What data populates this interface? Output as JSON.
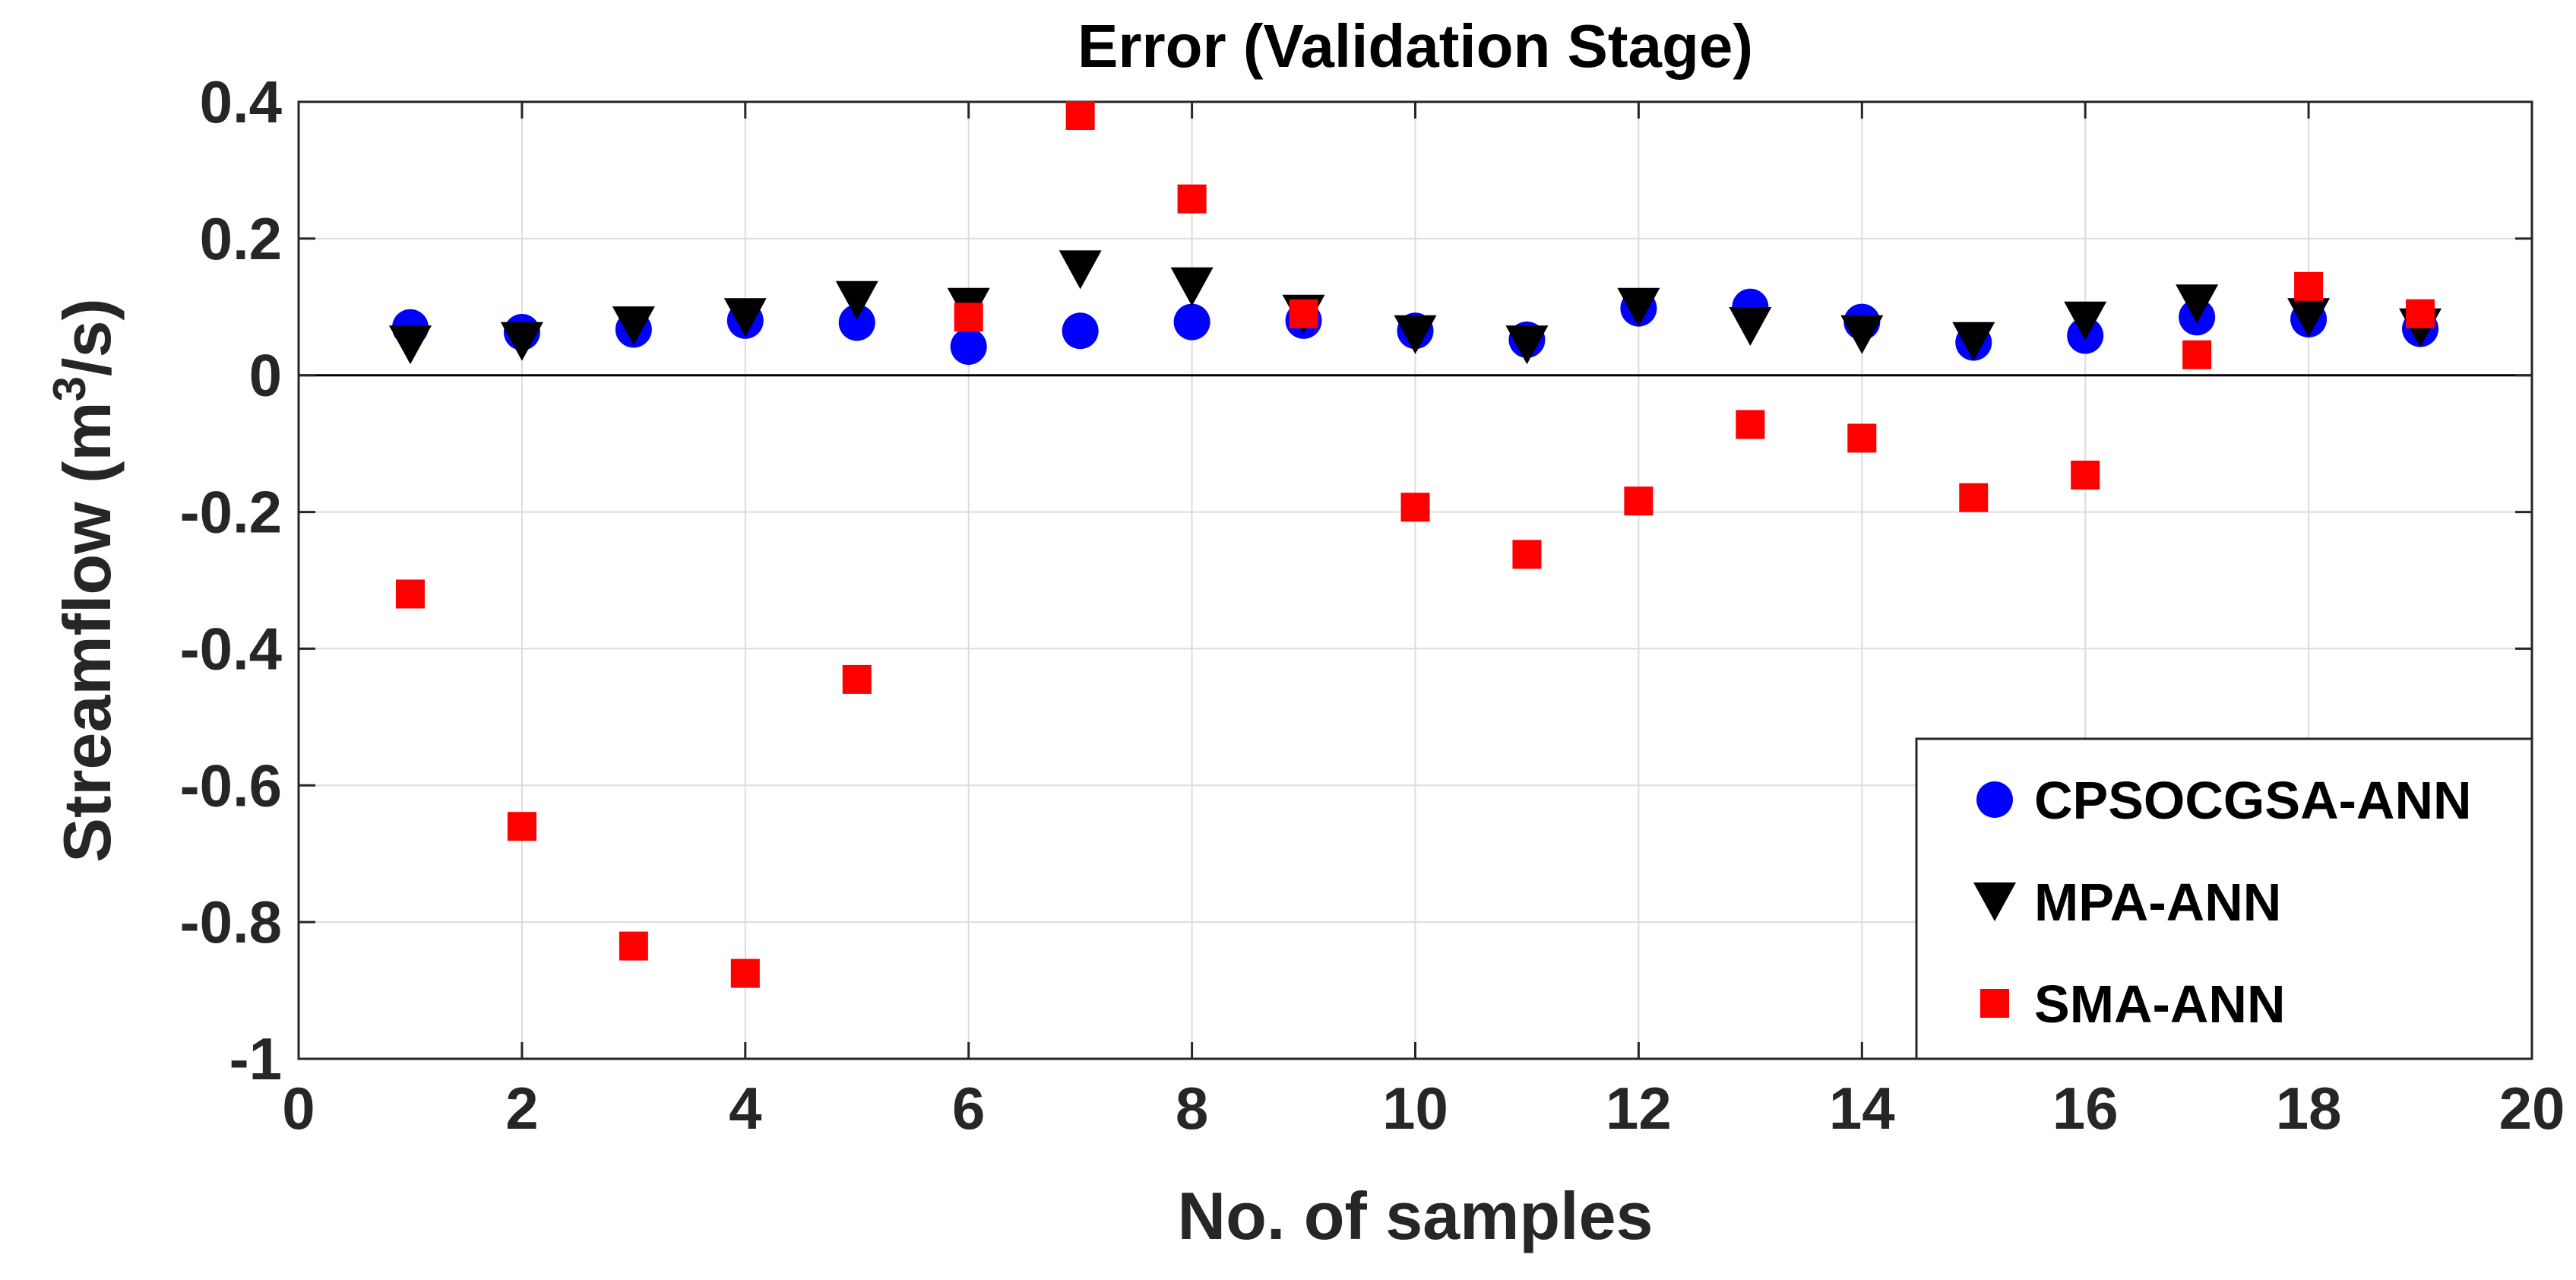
{
  "chart_data": {
    "type": "scatter",
    "title": "Error (Validation Stage)",
    "xlabel": "No. of samples",
    "ylabel_main": "Streamflow (m",
    "ylabel_sup": "3",
    "ylabel_tail": "/s)",
    "xlim": [
      0,
      20
    ],
    "ylim": [
      -1,
      0.4
    ],
    "xticks": [
      0,
      2,
      4,
      6,
      8,
      10,
      12,
      14,
      16,
      18,
      20
    ],
    "xtick_labels": [
      "0",
      "2",
      "4",
      "6",
      "8",
      "10",
      "12",
      "14",
      "16",
      "18",
      "20"
    ],
    "yticks": [
      0.4,
      0.2,
      0,
      -0.2,
      -0.4,
      -0.6,
      -0.8,
      -1
    ],
    "ytick_labels": [
      "0.4",
      "0.2",
      "0",
      "-0.2",
      "-0.4",
      "-0.6",
      "-0.8",
      "-1"
    ],
    "grid": true,
    "legend_position": "bottom-right",
    "zero_line": true,
    "x": [
      1,
      2,
      3,
      4,
      5,
      6,
      7,
      8,
      9,
      10,
      11,
      12,
      13,
      14,
      15,
      16,
      17,
      18,
      19
    ],
    "series": [
      {
        "name": "CPSOCGSA-ANN",
        "marker": "circle",
        "color": "#0000FF",
        "values": [
          0.07,
          0.063,
          0.067,
          0.08,
          0.077,
          0.042,
          0.065,
          0.078,
          0.08,
          0.065,
          0.052,
          0.098,
          0.1,
          0.078,
          0.048,
          0.058,
          0.085,
          0.082,
          0.068
        ]
      },
      {
        "name": "MPA-ANN",
        "marker": "triangle-down",
        "color": "#000000",
        "values": [
          0.045,
          0.05,
          0.073,
          0.085,
          0.11,
          0.1,
          0.155,
          0.13,
          0.09,
          0.06,
          0.045,
          0.1,
          0.072,
          0.06,
          0.05,
          0.08,
          0.105,
          0.085,
          0.07
        ]
      },
      {
        "name": "SMA-ANN",
        "marker": "square",
        "color": "#FF0000",
        "values": [
          -0.32,
          -0.66,
          -0.835,
          -0.875,
          -0.445,
          0.085,
          0.38,
          0.258,
          0.09,
          -0.193,
          -0.262,
          -0.184,
          -0.072,
          -0.092,
          -0.179,
          -0.146,
          0.03,
          0.13,
          0.09
        ]
      }
    ]
  }
}
